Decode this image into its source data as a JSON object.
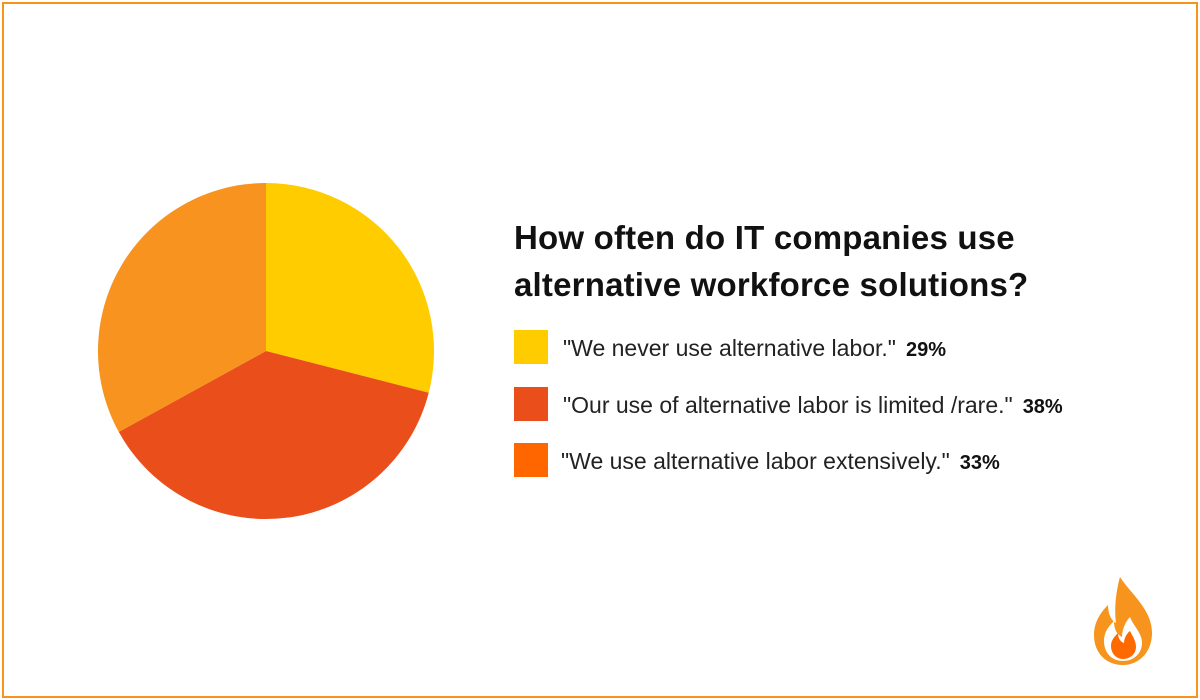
{
  "chart_data": {
    "type": "pie",
    "title": "How often do IT companies use alternative workforce solutions?",
    "title_lines": [
      "How often do IT companies use",
      "alternative workforce solutions?"
    ],
    "slices": [
      {
        "label": "\"We never use alternative labor.\"",
        "value": 29,
        "value_label": "29%",
        "color": "#ffcc00"
      },
      {
        "label": "\"Our use of alternative labor is limited /rare.\"",
        "value": 38,
        "value_label": "38%",
        "color": "#e94e1b"
      },
      {
        "label": "\"We use alternative labor extensively.\"",
        "value": 33,
        "value_label": "33%",
        "color": "#f7931e"
      }
    ],
    "legend_swatch_colors": [
      "#ffcc00",
      "#e94e1b",
      "#ff6600"
    ],
    "start_angle": "12 o'clock",
    "direction": "clockwise",
    "legend_placement": "right"
  },
  "logo": {
    "icon": "flame-icon",
    "colors": [
      "#f7941d",
      "#ff6a00"
    ]
  },
  "frame": {
    "border_color": "#f7941d"
  }
}
